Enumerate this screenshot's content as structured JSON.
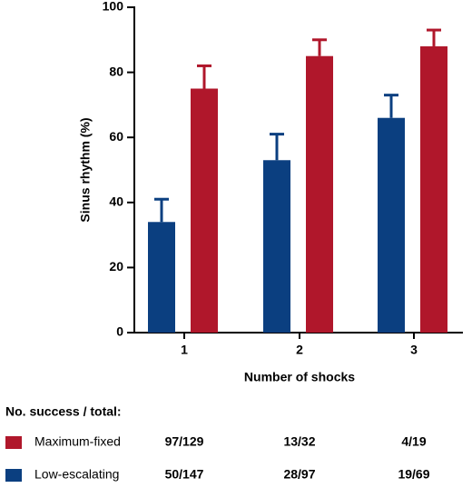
{
  "chart_data": {
    "type": "bar",
    "categories": [
      "1",
      "2",
      "3"
    ],
    "xlabel": "Number of shocks",
    "ylabel": "Sinus rhythm (%)",
    "ylim": [
      0,
      100
    ],
    "yticks": [
      0,
      20,
      40,
      60,
      80,
      100
    ],
    "series": [
      {
        "name": "Low-escalating",
        "color": "#0b3f80",
        "values": [
          34,
          53,
          66
        ],
        "errors": [
          7,
          8,
          7
        ],
        "counts": [
          "50/147",
          "28/97",
          "19/69"
        ]
      },
      {
        "name": "Maximum-fixed",
        "color": "#b0172b",
        "values": [
          75,
          85,
          88
        ],
        "errors": [
          7,
          5,
          5
        ],
        "counts": [
          "97/129",
          "13/32",
          "4/19"
        ]
      }
    ],
    "counts_title": "No. success / total:"
  }
}
